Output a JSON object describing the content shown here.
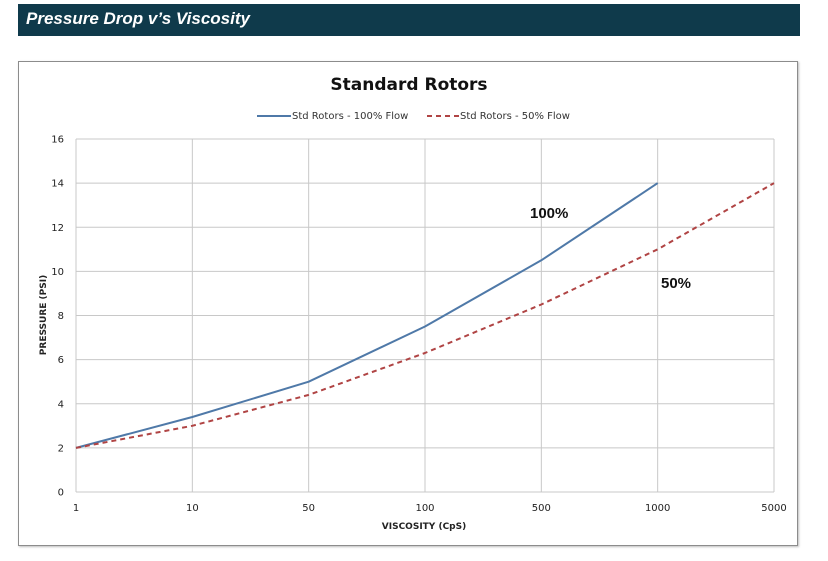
{
  "header": {
    "title": "Pressure Drop v’s Viscosity"
  },
  "colors": {
    "header_bg": "#0f3a4b",
    "series_100": "#4f79a8",
    "series_50": "#b04444",
    "grid": "#c8c8c8"
  },
  "chart_data": {
    "type": "line",
    "title": "Standard Rotors",
    "xlabel": "VISCOSITY (CpS)",
    "ylabel": "PRESSURE (PSI)",
    "x_categories": [
      "1",
      "10",
      "50",
      "100",
      "500",
      "1000",
      "5000"
    ],
    "ylim": [
      0,
      16
    ],
    "y_ticks": [
      "0",
      "2",
      "4",
      "6",
      "8",
      "10",
      "12",
      "14",
      "16"
    ],
    "grid": true,
    "legend_position": "top",
    "series": [
      {
        "name": "Std Rotors - 100% Flow",
        "style": "solid",
        "x": [
          "1",
          "10",
          "50",
          "100",
          "500",
          "1000"
        ],
        "values": [
          2,
          3.4,
          5,
          7.5,
          10.5,
          14
        ]
      },
      {
        "name": "Std Rotors - 50% Flow",
        "style": "dashed",
        "x": [
          "1",
          "10",
          "50",
          "100",
          "500",
          "1000",
          "5000"
        ],
        "values": [
          2,
          3,
          4.4,
          6.3,
          8.5,
          11,
          14
        ]
      }
    ],
    "annotations": [
      {
        "text": "100%",
        "x": "500",
        "y": 12.3
      },
      {
        "text": "50%",
        "x": "1000",
        "y": 9.5
      }
    ]
  }
}
